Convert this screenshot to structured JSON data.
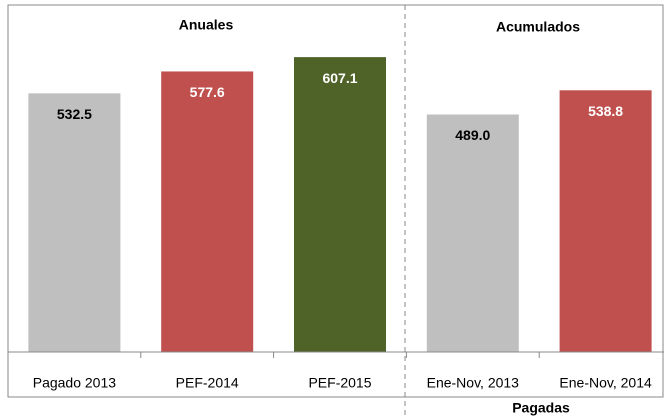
{
  "chart_data": {
    "type": "bar",
    "categories": [
      "Pagado 2013",
      "PEF-2014",
      "PEF-2015",
      "Ene-Nov, 2013",
      "Ene-Nov, 2014"
    ],
    "values": [
      532.5,
      577.6,
      607.1,
      489.0,
      538.8
    ],
    "value_labels": [
      "532.5",
      "577.6",
      "607.1",
      "489.0",
      "538.8"
    ],
    "colors": [
      "#bfbfbf",
      "#c0504d",
      "#4f6228",
      "#bfbfbf",
      "#c0504d"
    ],
    "label_colors": [
      "#000000",
      "#ffffff",
      "#ffffff",
      "#000000",
      "#ffffff"
    ],
    "ylim": [
      0,
      700
    ],
    "group_labels": {
      "left": "Anuales",
      "right": "Acumulados",
      "bottom_right": "Pagadas"
    }
  }
}
